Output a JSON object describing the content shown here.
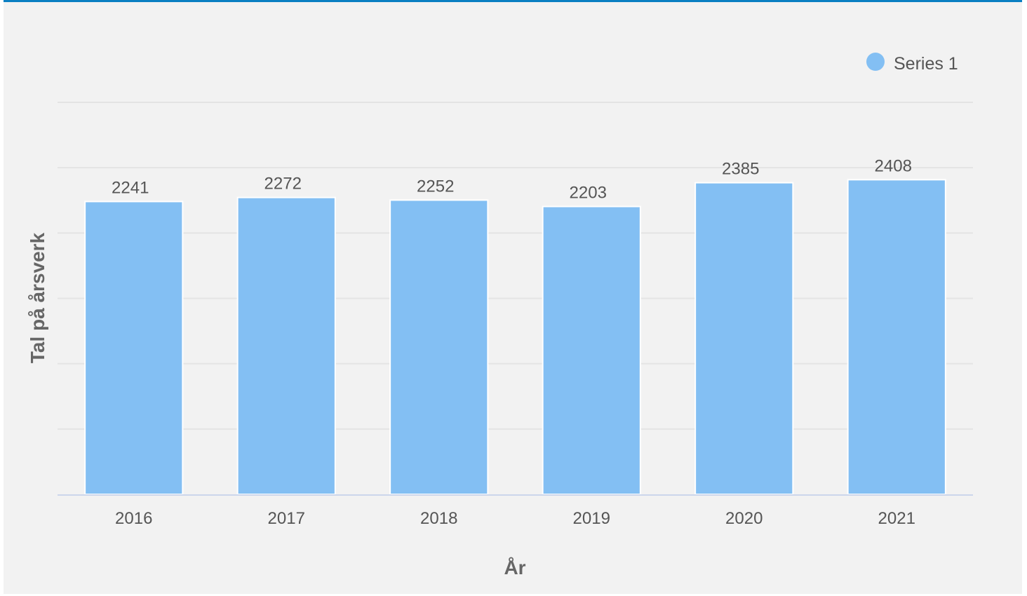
{
  "chart_data": {
    "type": "bar",
    "categories": [
      "2016",
      "2017",
      "2018",
      "2019",
      "2020",
      "2021"
    ],
    "series": [
      {
        "name": "Series 1",
        "values": [
          2241,
          2272,
          2252,
          2203,
          2385,
          2408
        ]
      }
    ],
    "title": "",
    "xlabel": "År",
    "ylabel": "Tal på årsverk",
    "ylim": [
      0,
      3000
    ],
    "grid": true,
    "legend": "top-right",
    "colors": {
      "bar": "#83bff3",
      "bar_stroke": "#ffffff",
      "grid": "#e4e4e4",
      "baseline": "#ccd6eb",
      "accent": "#0a7fc2"
    }
  }
}
